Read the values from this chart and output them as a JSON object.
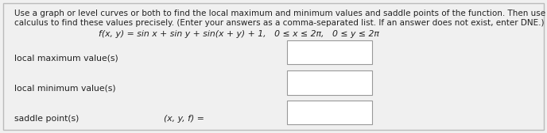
{
  "background_color": "#f0f0f0",
  "inner_bg": "#f0f0f0",
  "border_color": "#bbbbbb",
  "text_color": "#222222",
  "para_line1": "Use a graph or level curves or both to find the local maximum and minimum values and saddle points of the function. Then use",
  "para_line2": "calculus to find these values precisely. (Enter your answers as a comma-separated list. If an answer does not exist, enter DNE.)",
  "formula": "f(x, y) = sin x + sin y + sin(x + y) + 1,   0 ≤ x ≤ 2π,   0 ≤ y ≤ 2π",
  "label1": "local maximum value(s)",
  "label2": "local minimum value(s)",
  "label3": "saddle point(s)",
  "label3b": "(x, y, f) =",
  "box_color": "#ffffff",
  "box_border": "#999999",
  "font_size_para": 7.5,
  "font_size_formula": 7.8,
  "font_size_labels": 7.8,
  "fig_width": 6.88,
  "fig_height": 1.68,
  "dpi": 100
}
